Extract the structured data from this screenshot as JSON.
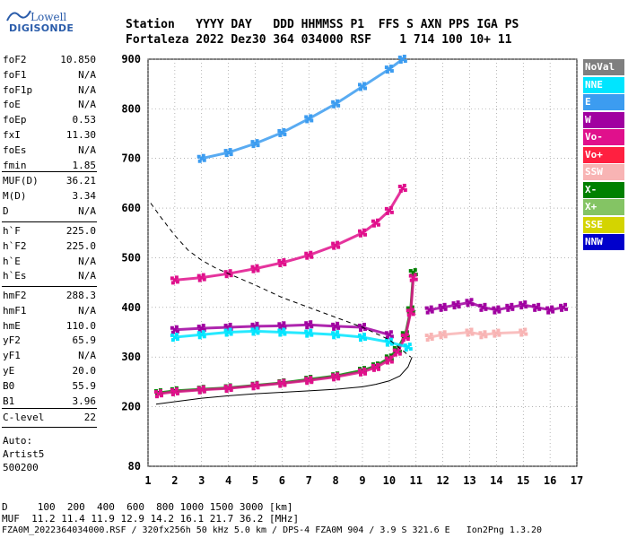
{
  "app": {
    "logo_top": "Lowell",
    "logo_bottom": "DIGISONDE"
  },
  "header": {
    "line1": "Station   YYYY DAY   DDD HHMMSS P1  FFS S AXN PPS IGA PS",
    "line2": "Fortaleza 2022 Dez30 364 034000 RSF    1 714 100 10+ 11"
  },
  "params": {
    "group1": [
      {
        "name": "foF2",
        "value": "10.850"
      },
      {
        "name": "foF1",
        "value": "N/A"
      },
      {
        "name": "foF1p",
        "value": "N/A"
      },
      {
        "name": "foE",
        "value": "N/A"
      },
      {
        "name": "foEp",
        "value": "0.53"
      },
      {
        "name": "fxI",
        "value": "11.30"
      },
      {
        "name": "foEs",
        "value": "N/A"
      },
      {
        "name": "fmin",
        "value": "1.85"
      }
    ],
    "group2": [
      {
        "name": "MUF(D)",
        "value": "36.21"
      },
      {
        "name": "M(D)",
        "value": "3.34"
      },
      {
        "name": "D",
        "value": "N/A"
      }
    ],
    "group3": [
      {
        "name": "h`F",
        "value": "225.0"
      },
      {
        "name": "h`F2",
        "value": "225.0"
      },
      {
        "name": "h`E",
        "value": "N/A"
      },
      {
        "name": "h`Es",
        "value": "N/A"
      }
    ],
    "group4": [
      {
        "name": "hmF2",
        "value": "288.3"
      },
      {
        "name": "hmF1",
        "value": "N/A"
      },
      {
        "name": "hmE",
        "value": "110.0"
      },
      {
        "name": "yF2",
        "value": "65.9"
      },
      {
        "name": "yF1",
        "value": "N/A"
      },
      {
        "name": "yE",
        "value": "20.0"
      },
      {
        "name": "B0",
        "value": "55.9"
      },
      {
        "name": "B1",
        "value": "3.96"
      }
    ],
    "group5": [
      {
        "name": "C-level",
        "value": "22"
      }
    ],
    "auto_lines": [
      "Auto:",
      "Artist5",
      "500200"
    ]
  },
  "legend": [
    {
      "label": "NoVal",
      "color": "#7f7f7f"
    },
    {
      "label": "NNE",
      "color": "#00e5ff"
    },
    {
      "label": "E",
      "color": "#3c9cf0"
    },
    {
      "label": "W",
      "color": "#a000a0"
    },
    {
      "label": "Vo-",
      "color": "#e0108c"
    },
    {
      "label": "Vo+",
      "color": "#ff2040"
    },
    {
      "label": "SSW",
      "color": "#f8b4b4"
    },
    {
      "label": "X-",
      "color": "#008000"
    },
    {
      "label": "X+",
      "color": "#84c464"
    },
    {
      "label": "SSE",
      "color": "#d4d400"
    },
    {
      "label": "NNW",
      "color": "#0000cc"
    }
  ],
  "footer": {
    "line1": "D     100  200  400  600  800 1000 1500 3000 [km]",
    "line2": "MUF  11.2 11.4 11.9 12.9 14.2 16.1 21.7 36.2 [MHz]",
    "line3": "FZA0M_2022364034000.RSF / 320fx256h 50 kHz 5.0 km / DPS-4 FZA0M 904 / 3.9 S 321.6 E   Ion2Png 1.3.20"
  },
  "chart_data": {
    "type": "scatter",
    "xlim": [
      1,
      17
    ],
    "ylim": [
      80,
      900
    ],
    "x_ticks": [
      1,
      2,
      3,
      4,
      5,
      6,
      7,
      8,
      9,
      10,
      11,
      12,
      13,
      14,
      15,
      16,
      17
    ],
    "y_ticks": [
      80,
      200,
      300,
      400,
      500,
      600,
      700,
      800,
      900
    ],
    "grid": true,
    "legend_placement": "right",
    "series": [
      {
        "name": "X-",
        "color": "#008000",
        "x": [
          1.4,
          2,
          3,
          4,
          5,
          6,
          7,
          8,
          9,
          9.5,
          10,
          10.3,
          10.6,
          10.8,
          10.9
        ],
        "y": [
          228,
          232,
          235,
          238,
          243,
          248,
          255,
          262,
          273,
          282,
          298,
          315,
          345,
          395,
          470
        ]
      },
      {
        "name": "Vo-",
        "color": "#e0108c",
        "x": [
          1.4,
          2,
          3,
          4,
          5,
          6,
          7,
          8,
          9,
          9.5,
          10,
          10.3,
          10.6,
          10.8,
          10.9
        ],
        "y": [
          226,
          230,
          234,
          237,
          242,
          247,
          253,
          260,
          270,
          279,
          294,
          310,
          340,
          390,
          460
        ]
      },
      {
        "name": "Vo-",
        "color": "#e0108c",
        "x": [
          2,
          3,
          4,
          5,
          6,
          7,
          8,
          9,
          9.5,
          10,
          10.5
        ],
        "y": [
          455,
          460,
          468,
          478,
          490,
          505,
          525,
          550,
          570,
          595,
          640
        ]
      },
      {
        "name": "E",
        "color": "#3c9cf0",
        "x": [
          3,
          4,
          5,
          6,
          7,
          8,
          9,
          10,
          10.5
        ],
        "y": [
          700,
          712,
          730,
          752,
          780,
          810,
          845,
          880,
          900
        ]
      },
      {
        "name": "W",
        "color": "#a000a0",
        "x": [
          2,
          3,
          4,
          5,
          6,
          7,
          8,
          9,
          10
        ],
        "y": [
          355,
          358,
          360,
          362,
          363,
          365,
          362,
          360,
          345
        ]
      },
      {
        "name": "NNE",
        "color": "#00e5ff",
        "x": [
          2,
          3,
          4,
          5,
          6,
          7,
          8,
          9,
          10,
          10.7
        ],
        "y": [
          340,
          345,
          350,
          352,
          350,
          348,
          345,
          340,
          330,
          320
        ]
      },
      {
        "name": "W",
        "color": "#a000a0",
        "x": [
          11.5,
          12,
          12.5,
          13,
          13.5,
          14,
          14.5,
          15,
          15.5,
          16,
          16.5
        ],
        "y": [
          395,
          400,
          405,
          410,
          400,
          395,
          400,
          405,
          400,
          395,
          400
        ]
      },
      {
        "name": "SSW",
        "color": "#f8b4b4",
        "x": [
          11.5,
          12,
          13,
          13.5,
          14,
          15
        ],
        "y": [
          340,
          345,
          350,
          345,
          348,
          350
        ]
      }
    ],
    "profile_solid": {
      "x": [
        1.3,
        2,
        3,
        4,
        5,
        6,
        7,
        8,
        9,
        9.5,
        10,
        10.4,
        10.7,
        10.85
      ],
      "y": [
        205,
        210,
        217,
        222,
        226,
        229,
        232,
        235,
        240,
        245,
        252,
        262,
        280,
        300
      ]
    },
    "profile_dashed": {
      "x": [
        1.1,
        1.5,
        2,
        2.5,
        3,
        3.5,
        4,
        5,
        6,
        7,
        8,
        9,
        10,
        10.8
      ],
      "y": [
        610,
        580,
        545,
        515,
        495,
        480,
        468,
        445,
        420,
        400,
        380,
        360,
        335,
        300
      ]
    }
  }
}
